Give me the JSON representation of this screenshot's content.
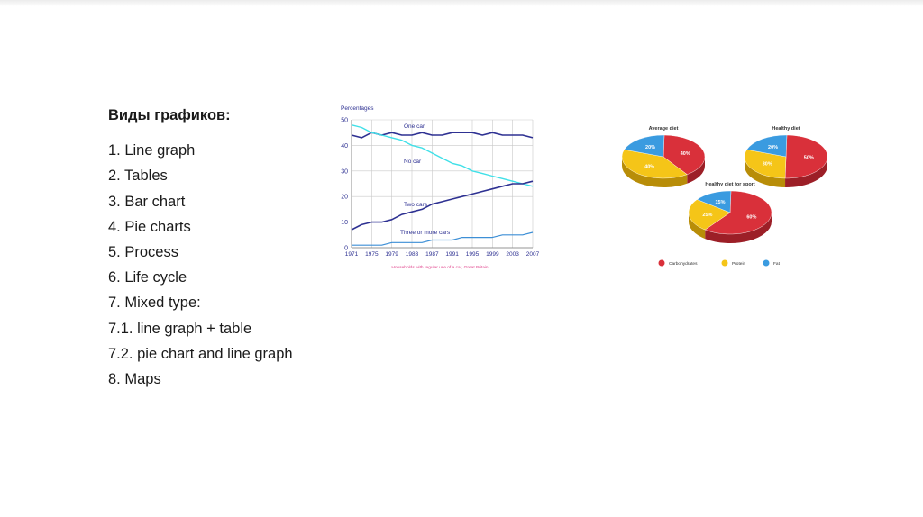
{
  "slide": {
    "heading": "Виды графиков:",
    "items": [
      "1. Line graph",
      "2. Tables",
      "3. Bar chart",
      "4. Pie charts",
      "5. Process",
      "6. Life cycle",
      "7. Mixed type:",
      "7.1. line graph + table",
      "7.2. pie chart and line graph",
      "8. Maps"
    ]
  },
  "chart_data": [
    {
      "type": "line",
      "ylabel": "Percentages",
      "ylim": [
        0,
        50
      ],
      "yticks": [
        "0",
        "10",
        "20",
        "30",
        "40",
        "50"
      ],
      "xlim": [
        1971,
        2007
      ],
      "xticks": [
        "1971",
        "1975",
        "1979",
        "1983",
        "1987",
        "1991",
        "1995",
        "1999",
        "2003",
        "2007"
      ],
      "caption": "Households with regular use of a car, Great Britain",
      "grid": true,
      "colors": {
        "one_car": "#2e3192",
        "no_car": "#40e0e8",
        "two_cars": "#2e3192",
        "three_cars": "#3d8fd6",
        "caption": "#e0408a",
        "axis_text": "#2e3192"
      },
      "series": [
        {
          "name": "One car",
          "x": [
            1971,
            1973,
            1975,
            1977,
            1979,
            1981,
            1983,
            1985,
            1987,
            1989,
            1991,
            1993,
            1995,
            1997,
            1999,
            2001,
            2003,
            2005,
            2007
          ],
          "y": [
            44,
            43,
            45,
            44,
            45,
            44,
            44,
            45,
            44,
            44,
            45,
            45,
            45,
            44,
            45,
            44,
            44,
            44,
            43
          ]
        },
        {
          "name": "No car",
          "x": [
            1971,
            1973,
            1975,
            1977,
            1979,
            1981,
            1983,
            1985,
            1987,
            1989,
            1991,
            1993,
            1995,
            1997,
            1999,
            2001,
            2003,
            2005,
            2007
          ],
          "y": [
            48,
            47,
            45,
            44,
            43,
            42,
            40,
            39,
            37,
            35,
            33,
            32,
            30,
            29,
            28,
            27,
            26,
            25,
            24
          ]
        },
        {
          "name": "Two cars",
          "x": [
            1971,
            1973,
            1975,
            1977,
            1979,
            1981,
            1983,
            1985,
            1987,
            1989,
            1991,
            1993,
            1995,
            1997,
            1999,
            2001,
            2003,
            2005,
            2007
          ],
          "y": [
            7,
            9,
            10,
            10,
            11,
            13,
            14,
            15,
            17,
            18,
            19,
            20,
            21,
            22,
            23,
            24,
            25,
            25,
            26
          ]
        },
        {
          "name": "Three or more cars",
          "x": [
            1971,
            1973,
            1975,
            1977,
            1979,
            1981,
            1983,
            1985,
            1987,
            1989,
            1991,
            1993,
            1995,
            1997,
            1999,
            2001,
            2003,
            2005,
            2007
          ],
          "y": [
            1,
            1,
            1,
            1,
            2,
            2,
            2,
            2,
            3,
            3,
            3,
            4,
            4,
            4,
            4,
            5,
            5,
            5,
            6
          ]
        }
      ]
    },
    {
      "type": "pie",
      "title": "Average diet",
      "slices": [
        {
          "name": "Carbohydrates",
          "value": 40,
          "label": "40%"
        },
        {
          "name": "Protein",
          "value": 40,
          "label": "40%"
        },
        {
          "name": "Fat",
          "value": 20,
          "label": "20%"
        }
      ]
    },
    {
      "type": "pie",
      "title": "Healthy diet",
      "slices": [
        {
          "name": "Carbohydrates",
          "value": 50,
          "label": "50%"
        },
        {
          "name": "Protein",
          "value": 30,
          "label": "30%"
        },
        {
          "name": "Fat",
          "value": 20,
          "label": "20%"
        }
      ]
    },
    {
      "type": "pie",
      "title": "Healthy diet for sport",
      "slices": [
        {
          "name": "Carbohydrates",
          "value": 60,
          "label": "60%"
        },
        {
          "name": "Protein",
          "value": 25,
          "label": "25%"
        },
        {
          "name": "Fat",
          "value": 15,
          "label": "15%"
        }
      ]
    }
  ],
  "pie_legend": [
    {
      "name": "Carbohydrates",
      "color": "#d9303a"
    },
    {
      "name": "Protein",
      "color": "#f5c518"
    },
    {
      "name": "Fat",
      "color": "#3a9be0"
    }
  ]
}
